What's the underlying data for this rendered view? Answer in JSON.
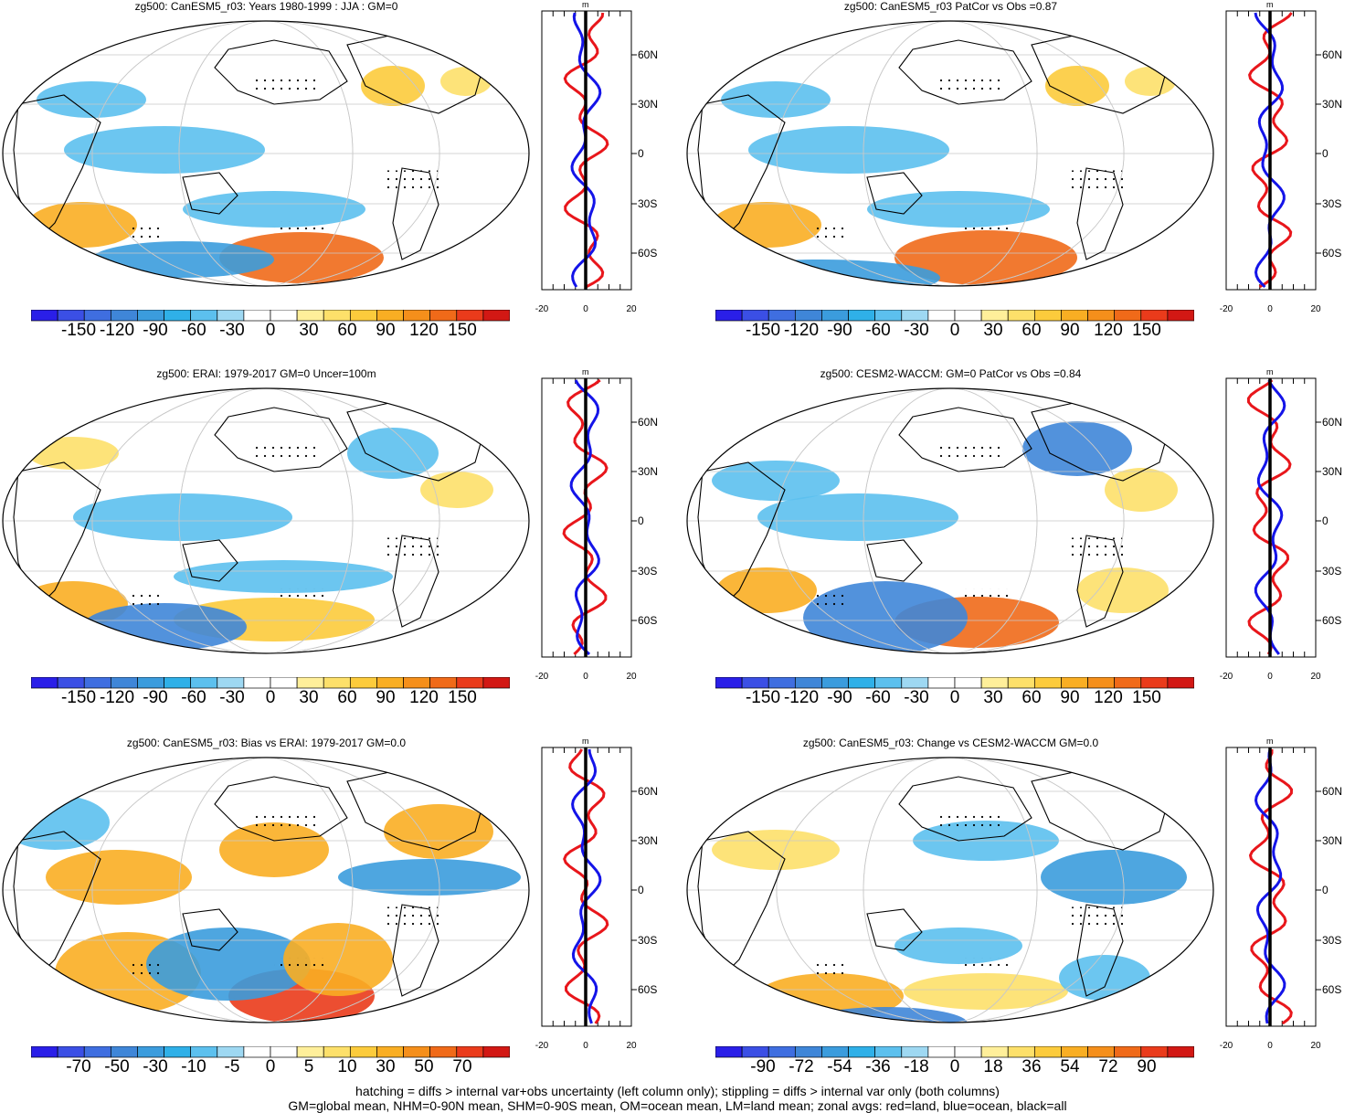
{
  "panels": [
    {
      "title": "zg500: CanESM5_r03: Years 1980-1999 : JJA : GM=0",
      "colorbar": {
        "colors": [
          "#2a1fe8",
          "#3b4fe5",
          "#3f6ee0",
          "#3f86d8",
          "#3b9cdd",
          "#2fb0e8",
          "#5cc0ee",
          "#9ed8f2",
          "#ffffff",
          "#ffffff",
          "#ffef9a",
          "#fde06a",
          "#fccb3c",
          "#f9ae23",
          "#f58f1b",
          "#f06a19",
          "#ea3b1b",
          "#d21814"
        ],
        "labels": [
          "-150",
          "-120",
          "-90",
          "-60",
          "-30",
          "0",
          "30",
          "60",
          "90",
          "120",
          "150"
        ]
      },
      "zonal": {
        "unit": "m",
        "xticks": [
          "-20",
          "0",
          "20"
        ],
        "lat_labels": [
          "60N",
          "30N",
          "0",
          "30S",
          "60S"
        ]
      }
    },
    {
      "title": "zg500: CanESM5_r03 PatCor vs Obs =0.87",
      "colorbar": {
        "colors": [
          "#2a1fe8",
          "#3b4fe5",
          "#3f6ee0",
          "#3f86d8",
          "#3b9cdd",
          "#2fb0e8",
          "#5cc0ee",
          "#9ed8f2",
          "#ffffff",
          "#ffffff",
          "#ffef9a",
          "#fde06a",
          "#fccb3c",
          "#f9ae23",
          "#f58f1b",
          "#f06a19",
          "#ea3b1b",
          "#d21814"
        ],
        "labels": [
          "-150",
          "-120",
          "-90",
          "-60",
          "-30",
          "0",
          "30",
          "60",
          "90",
          "120",
          "150"
        ]
      },
      "zonal": {
        "unit": "m",
        "xticks": [
          "-20",
          "0",
          "20"
        ],
        "lat_labels": [
          "60N",
          "30N",
          "0",
          "30S",
          "60S"
        ]
      }
    },
    {
      "title": "zg500: ERAI: 1979-2017 GM=0 Uncer=100m",
      "colorbar": {
        "colors": [
          "#2a1fe8",
          "#3b4fe5",
          "#3f6ee0",
          "#3f86d8",
          "#3b9cdd",
          "#2fb0e8",
          "#5cc0ee",
          "#9ed8f2",
          "#ffffff",
          "#ffffff",
          "#ffef9a",
          "#fde06a",
          "#fccb3c",
          "#f9ae23",
          "#f58f1b",
          "#f06a19",
          "#ea3b1b",
          "#d21814"
        ],
        "labels": [
          "-150",
          "-120",
          "-90",
          "-60",
          "-30",
          "0",
          "30",
          "60",
          "90",
          "120",
          "150"
        ]
      },
      "zonal": {
        "unit": "m",
        "xticks": [
          "-20",
          "0",
          "20"
        ],
        "lat_labels": [
          "60N",
          "30N",
          "0",
          "30S",
          "60S"
        ]
      }
    },
    {
      "title": "zg500: CESM2-WACCM: GM=0 PatCor vs Obs =0.84",
      "colorbar": {
        "colors": [
          "#2a1fe8",
          "#3b4fe5",
          "#3f6ee0",
          "#3f86d8",
          "#3b9cdd",
          "#2fb0e8",
          "#5cc0ee",
          "#9ed8f2",
          "#ffffff",
          "#ffffff",
          "#ffef9a",
          "#fde06a",
          "#fccb3c",
          "#f9ae23",
          "#f58f1b",
          "#f06a19",
          "#ea3b1b",
          "#d21814"
        ],
        "labels": [
          "-150",
          "-120",
          "-90",
          "-60",
          "-30",
          "0",
          "30",
          "60",
          "90",
          "120",
          "150"
        ]
      },
      "zonal": {
        "unit": "m",
        "xticks": [
          "-20",
          "0",
          "20"
        ],
        "lat_labels": [
          "60N",
          "30N",
          "0",
          "30S",
          "60S"
        ]
      }
    },
    {
      "title": "zg500: CanESM5_r03: Bias vs ERAI: 1979-2017 GM=0.0",
      "colorbar": {
        "colors": [
          "#2a1fe8",
          "#3b4fe5",
          "#3f6ee0",
          "#3f86d8",
          "#3b9cdd",
          "#2fb0e8",
          "#5cc0ee",
          "#9ed8f2",
          "#ffffff",
          "#ffffff",
          "#ffef9a",
          "#fde06a",
          "#fccb3c",
          "#f9ae23",
          "#f58f1b",
          "#f06a19",
          "#ea3b1b",
          "#d21814"
        ],
        "labels": [
          "-70",
          "-50",
          "-30",
          "-10",
          "-5",
          "0",
          "5",
          "10",
          "30",
          "50",
          "70"
        ]
      },
      "zonal": {
        "unit": "m",
        "xticks": [
          "-20",
          "0",
          "20"
        ],
        "lat_labels": [
          "60N",
          "30N",
          "0",
          "30S",
          "60S"
        ]
      }
    },
    {
      "title": "zg500: CanESM5_r03: Change vs CESM2-WACCM GM=0.0",
      "colorbar": {
        "colors": [
          "#2a1fe8",
          "#3b4fe5",
          "#3f6ee0",
          "#3f86d8",
          "#3b9cdd",
          "#2fb0e8",
          "#5cc0ee",
          "#9ed8f2",
          "#ffffff",
          "#ffffff",
          "#ffef9a",
          "#fde06a",
          "#fccb3c",
          "#f9ae23",
          "#f58f1b",
          "#f06a19",
          "#ea3b1b",
          "#d21814"
        ],
        "labels": [
          "-90",
          "-72",
          "-54",
          "-36",
          "-18",
          "0",
          "18",
          "36",
          "54",
          "72",
          "90"
        ]
      },
      "zonal": {
        "unit": "m",
        "xticks": [
          "-20",
          "0",
          "20"
        ],
        "lat_labels": [
          "60N",
          "30N",
          "0",
          "30S",
          "60S"
        ]
      }
    }
  ],
  "footer": {
    "line1": "hatching = diffs > internal var+obs uncertainty (left column only); stippling = diffs > internal var only (both columns)",
    "line2": "GM=global mean, NHM=0-90N mean, SHM=0-90S mean, OM=ocean mean, LM=land mean; zonal avgs: red=land, blue=ocean, black=all"
  },
  "colors": {
    "land": "#e8161b",
    "ocean": "#1414e8",
    "all": "#000000"
  }
}
